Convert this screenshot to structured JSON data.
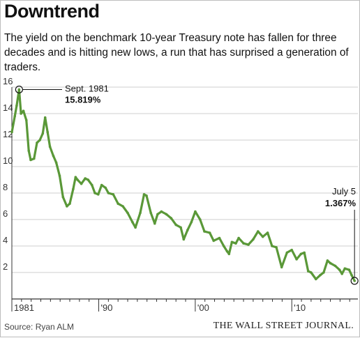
{
  "header": {
    "title": "Downtrend",
    "subtitle": "The yield on the benchmark 10-year Treasury note has fallen for three decades and is hitting new lows, a run that has surprised a generation of traders."
  },
  "footer": {
    "source": "Source: Ryan ALM",
    "brand": "THE WALL STREET JOURNAL."
  },
  "colors": {
    "line": "#5a9838",
    "axis": "#333333",
    "grid": "#cfcfcf"
  },
  "chart_data": {
    "type": "line",
    "title": "Downtrend",
    "xlabel": "",
    "ylabel": "",
    "xlim": [
      1981.0,
      2016.85
    ],
    "ylim": [
      0,
      16
    ],
    "y_ticks": [
      0,
      2,
      4,
      6,
      8,
      10,
      12,
      14,
      16
    ],
    "y_tick_labels": [
      "",
      "2",
      "4",
      "6",
      "8",
      "10",
      "12",
      "14",
      "16"
    ],
    "x_ticks": [
      1981,
      1990,
      2000,
      2010
    ],
    "x_tick_labels": [
      "1981",
      "'90",
      "'00",
      "'10"
    ],
    "grid": true,
    "annotations": [
      {
        "date_label": "Sept. 1981",
        "value_label": "15.819%",
        "x": 1981.75,
        "y": 15.819
      },
      {
        "date_label": "July 5",
        "value_label": "1.367%",
        "x": 2016.5,
        "y": 1.367
      }
    ],
    "series": [
      {
        "name": "",
        "x": [
          1981.0,
          1981.3,
          1981.5,
          1981.75,
          1981.95,
          1982.2,
          1982.5,
          1982.75,
          1982.95,
          1983.3,
          1983.6,
          1983.9,
          1984.2,
          1984.45,
          1984.7,
          1984.95,
          1985.3,
          1985.6,
          1985.95,
          1986.3,
          1986.7,
          1987.0,
          1987.35,
          1987.6,
          1987.8,
          1988.2,
          1988.6,
          1988.9,
          1989.3,
          1989.6,
          1989.95,
          1990.3,
          1990.7,
          1991.0,
          1991.5,
          1992.0,
          1992.5,
          1993.0,
          1993.5,
          1993.8,
          1994.3,
          1994.7,
          1994.95,
          1995.4,
          1995.8,
          1996.1,
          1996.5,
          1997.0,
          1997.5,
          1998.0,
          1998.5,
          1998.8,
          1999.2,
          1999.6,
          2000.0,
          2000.5,
          2000.95,
          2001.5,
          2001.9,
          2002.5,
          2002.95,
          2003.3,
          2003.5,
          2003.8,
          2004.2,
          2004.5,
          2005.0,
          2005.5,
          2006.0,
          2006.5,
          2007.0,
          2007.5,
          2007.95,
          2008.4,
          2008.95,
          2009.5,
          2010.0,
          2010.5,
          2010.95,
          2011.3,
          2011.7,
          2012.0,
          2012.5,
          2012.95,
          2013.3,
          2013.7,
          2014.0,
          2014.5,
          2014.95,
          2015.2,
          2015.5,
          2015.95,
          2016.2,
          2016.5
        ],
        "values": [
          12.6,
          13.8,
          14.6,
          15.82,
          14.0,
          14.2,
          13.5,
          11.2,
          10.5,
          10.6,
          11.8,
          12.0,
          12.5,
          13.7,
          12.6,
          11.5,
          10.8,
          10.3,
          9.3,
          7.7,
          7.0,
          7.2,
          8.3,
          9.2,
          9.0,
          8.7,
          9.1,
          9.0,
          8.6,
          8.0,
          7.9,
          8.6,
          8.4,
          8.0,
          7.9,
          7.2,
          7.0,
          6.5,
          5.8,
          5.4,
          6.5,
          7.9,
          7.8,
          6.5,
          5.7,
          6.4,
          6.6,
          6.4,
          6.1,
          5.6,
          5.4,
          4.5,
          5.2,
          5.8,
          6.6,
          6.0,
          5.1,
          5.0,
          4.4,
          4.6,
          4.0,
          3.6,
          3.4,
          4.3,
          4.2,
          4.6,
          4.2,
          4.1,
          4.5,
          5.1,
          4.7,
          5.0,
          4.0,
          3.9,
          2.4,
          3.5,
          3.7,
          3.0,
          3.4,
          3.5,
          2.1,
          2.0,
          1.5,
          1.8,
          2.0,
          2.9,
          2.7,
          2.5,
          2.2,
          1.9,
          2.3,
          2.2,
          1.8,
          1.367
        ]
      }
    ]
  }
}
